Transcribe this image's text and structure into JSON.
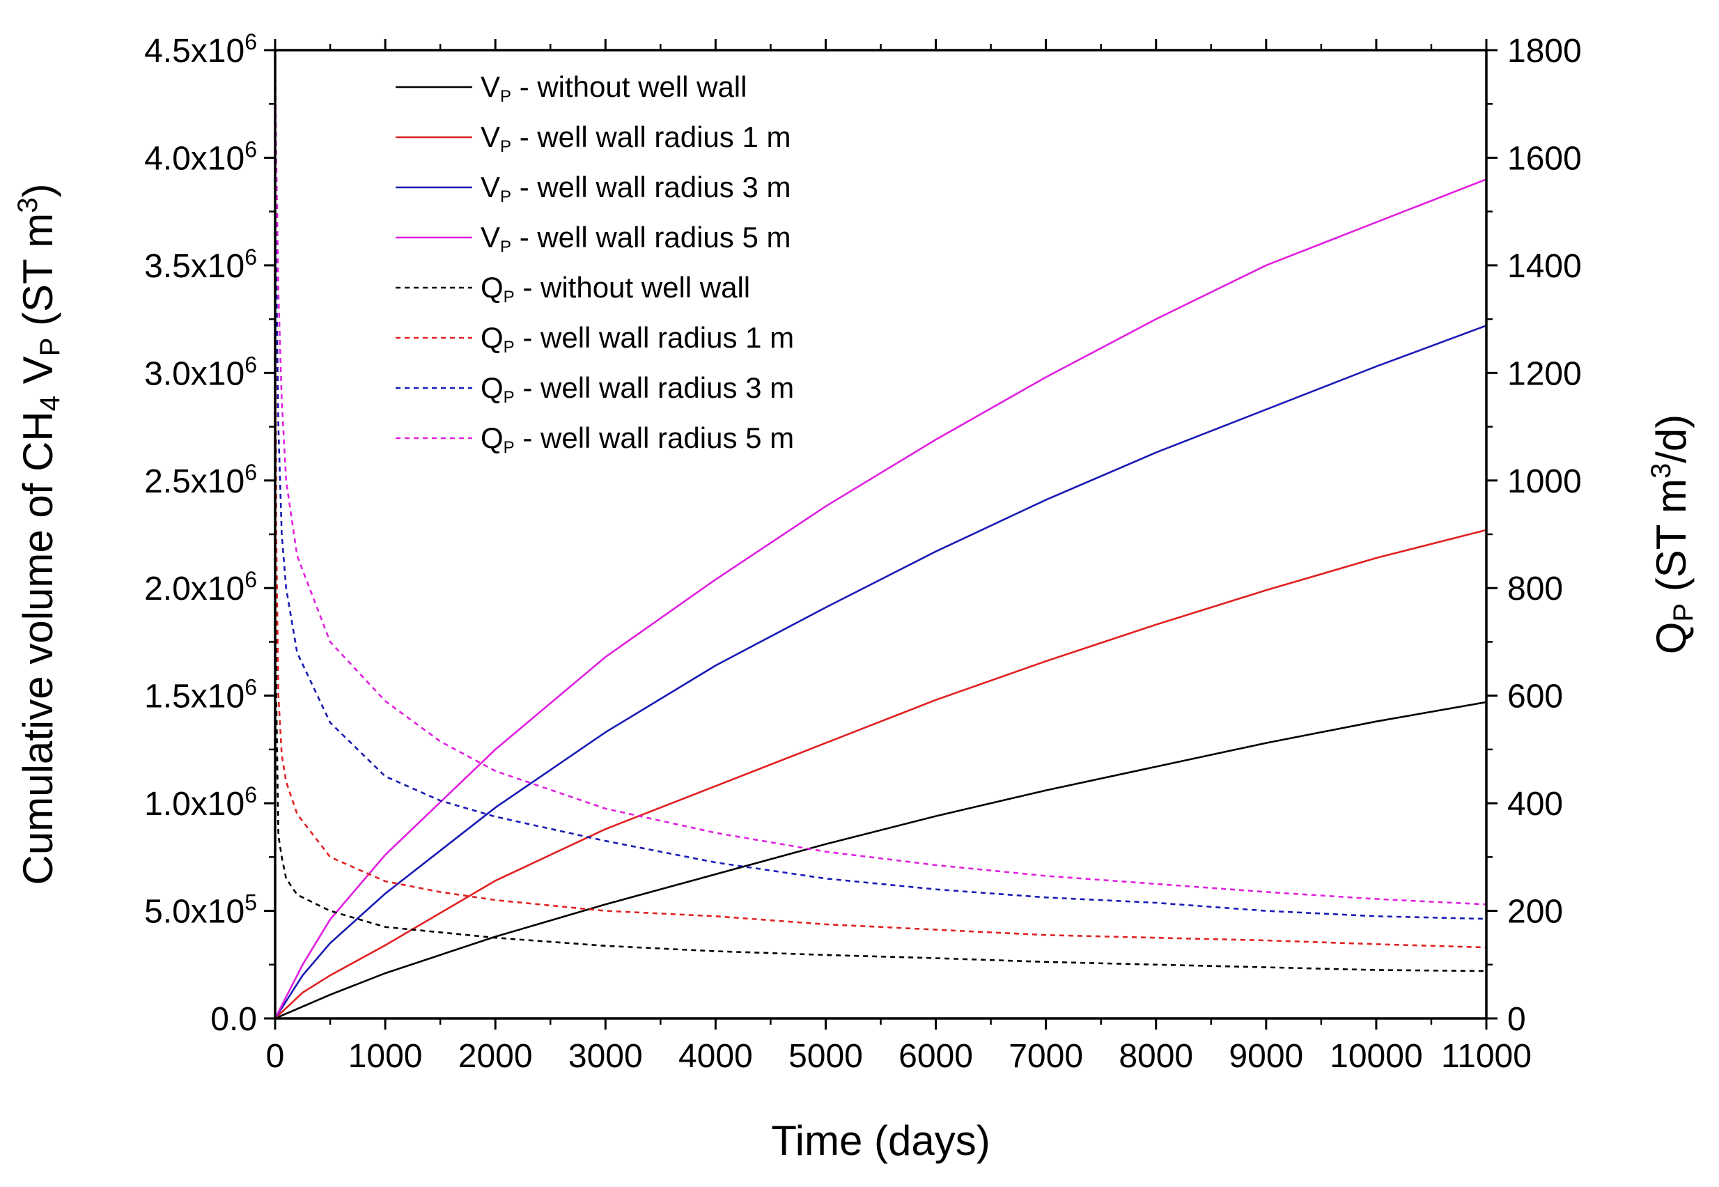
{
  "chart_data": {
    "type": "line",
    "xlabel": "Time (days)",
    "ylabel_left": {
      "text": "Cumulative volume of CH",
      "sub": "4",
      "mid": " V",
      "sub2": "P",
      "tail": " (ST m",
      "sup": "3",
      "end": ")"
    },
    "ylabel_right": {
      "text": "Q",
      "sub": "P",
      "tail": " (ST m",
      "sup": "3",
      "end": "/d)"
    },
    "xlim": [
      0,
      11000
    ],
    "ylim_left": [
      0,
      4500000
    ],
    "ylim_right": [
      0,
      1800
    ],
    "x_ticks": [
      0,
      1000,
      2000,
      3000,
      4000,
      5000,
      6000,
      7000,
      8000,
      9000,
      10000,
      11000
    ],
    "x_tick_labels": [
      "0",
      "1000",
      "2000",
      "3000",
      "4000",
      "5000",
      "6000",
      "7000",
      "8000",
      "9000",
      "10000",
      "11000"
    ],
    "y_left_ticks": [
      {
        "value": 0,
        "mant": "0.0",
        "exp": ""
      },
      {
        "value": 500000,
        "mant": "5.0x10",
        "exp": "5"
      },
      {
        "value": 1000000,
        "mant": "1.0x10",
        "exp": "6"
      },
      {
        "value": 1500000,
        "mant": "1.5x10",
        "exp": "6"
      },
      {
        "value": 2000000,
        "mant": "2.0x10",
        "exp": "6"
      },
      {
        "value": 2500000,
        "mant": "2.5x10",
        "exp": "6"
      },
      {
        "value": 3000000,
        "mant": "3.0x10",
        "exp": "6"
      },
      {
        "value": 3500000,
        "mant": "3.5x10",
        "exp": "6"
      },
      {
        "value": 4000000,
        "mant": "4.0x10",
        "exp": "6"
      },
      {
        "value": 4500000,
        "mant": "4.5x10",
        "exp": "6"
      }
    ],
    "y_right_ticks": [
      0,
      200,
      400,
      600,
      800,
      1000,
      1200,
      1400,
      1600,
      1800
    ],
    "legend_position": "top-left",
    "series": [
      {
        "name": "V",
        "sub": "P",
        "rest": " - without well wall",
        "axis": "left",
        "color": "#000000",
        "dash": "solid",
        "x": [
          0,
          500,
          1000,
          2000,
          3000,
          4000,
          5000,
          6000,
          7000,
          8000,
          9000,
          10000,
          11000
        ],
        "y": [
          0,
          110000,
          210000,
          380000,
          530000,
          670000,
          810000,
          940000,
          1060000,
          1170000,
          1280000,
          1380000,
          1470000
        ]
      },
      {
        "name": "V",
        "sub": "P",
        "rest": " - well wall radius 1 m",
        "axis": "left",
        "color": "#e02020",
        "dash": "solid",
        "x": [
          0,
          250,
          500,
          1000,
          2000,
          3000,
          4000,
          5000,
          6000,
          7000,
          8000,
          9000,
          10000,
          11000
        ],
        "y": [
          0,
          120000,
          200000,
          340000,
          640000,
          880000,
          1080000,
          1280000,
          1480000,
          1660000,
          1830000,
          1990000,
          2140000,
          2270000
        ]
      },
      {
        "name": "V",
        "sub": "P",
        "rest": " - well wall radius 3 m",
        "axis": "left",
        "color": "#1a1ab5",
        "dash": "solid",
        "x": [
          0,
          250,
          500,
          1000,
          2000,
          3000,
          4000,
          5000,
          6000,
          7000,
          8000,
          9000,
          10000,
          11000
        ],
        "y": [
          0,
          200000,
          350000,
          580000,
          980000,
          1330000,
          1640000,
          1910000,
          2170000,
          2410000,
          2630000,
          2830000,
          3030000,
          3220000
        ]
      },
      {
        "name": "V",
        "sub": "P",
        "rest": " - well wall radius 5 m",
        "axis": "left",
        "color": "#e020e0",
        "dash": "solid",
        "x": [
          0,
          250,
          500,
          1000,
          2000,
          3000,
          4000,
          5000,
          6000,
          7000,
          8000,
          9000,
          10000,
          11000
        ],
        "y": [
          0,
          250000,
          460000,
          760000,
          1250000,
          1680000,
          2040000,
          2380000,
          2690000,
          2980000,
          3250000,
          3500000,
          3700000,
          3900000
        ]
      },
      {
        "name": "Q",
        "sub": "P",
        "rest": " - without well wall",
        "axis": "right",
        "color": "#000000",
        "dash": "dotted",
        "x": [
          0,
          10,
          30,
          60,
          100,
          200,
          500,
          1000,
          1500,
          2000,
          3000,
          4000,
          5000,
          6000,
          7000,
          8000,
          9000,
          10000,
          11000
        ],
        "y": [
          1800,
          600,
          340,
          300,
          260,
          230,
          200,
          170,
          160,
          150,
          135,
          125,
          118,
          112,
          105,
          100,
          95,
          90,
          88
        ]
      },
      {
        "name": "Q",
        "sub": "P",
        "rest": " - well wall radius 1 m",
        "axis": "right",
        "color": "#e02020",
        "dash": "dotted",
        "x": [
          0,
          10,
          30,
          60,
          100,
          200,
          500,
          1000,
          1500,
          2000,
          3000,
          4000,
          5000,
          6000,
          7000,
          8000,
          9000,
          10000,
          11000
        ],
        "y": [
          1800,
          900,
          600,
          490,
          440,
          380,
          300,
          255,
          235,
          220,
          200,
          190,
          175,
          165,
          155,
          150,
          145,
          138,
          132
        ]
      },
      {
        "name": "Q",
        "sub": "P",
        "rest": " - well wall radius 3 m",
        "axis": "right",
        "color": "#1a1ab5",
        "dash": "dotted",
        "x": [
          0,
          10,
          30,
          60,
          100,
          200,
          500,
          1000,
          1500,
          2000,
          3000,
          4000,
          5000,
          6000,
          7000,
          8000,
          9000,
          10000,
          11000
        ],
        "y": [
          1800,
          1400,
          1100,
          900,
          800,
          680,
          550,
          450,
          405,
          375,
          330,
          290,
          260,
          240,
          225,
          215,
          200,
          190,
          185
        ]
      },
      {
        "name": "Q",
        "sub": "P",
        "rest": " - well wall radius 5 m",
        "axis": "right",
        "color": "#e020e0",
        "dash": "dotted",
        "x": [
          0,
          10,
          30,
          60,
          100,
          200,
          500,
          1000,
          1500,
          2000,
          3000,
          4000,
          5000,
          6000,
          7000,
          8000,
          9000,
          10000,
          11000
        ],
        "y": [
          1800,
          1600,
          1350,
          1150,
          1000,
          860,
          700,
          590,
          515,
          460,
          390,
          345,
          310,
          285,
          265,
          250,
          235,
          222,
          212
        ]
      }
    ]
  }
}
